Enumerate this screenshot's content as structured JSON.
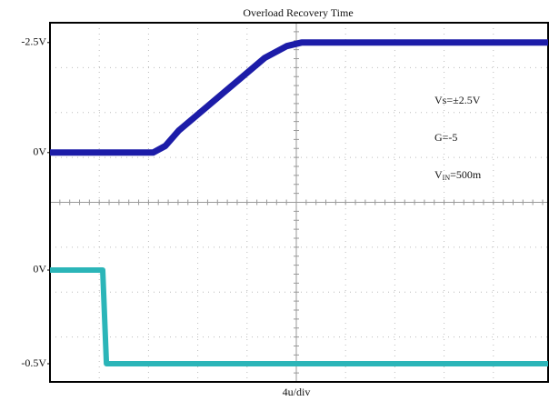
{
  "chart_data": {
    "type": "line",
    "title": "Overload Recovery Time",
    "xlabel": "4u/div",
    "xlim": [
      0,
      40.6
    ],
    "ylim": [
      5.21,
      -2.95
    ],
    "yticks": [
      {
        "value": -2.5,
        "label": "-2.5V"
      },
      {
        "value": 0,
        "label": "0V"
      }
    ],
    "y2lim": [
      -0.597,
      1.32
    ],
    "y2ticks": [
      {
        "value": 0,
        "label": "0V"
      },
      {
        "value": -0.5,
        "label": "-0.5V"
      }
    ],
    "annotations": [
      "Vs=±2.5V",
      "G=-5"
    ],
    "vin_annotation": {
      "base": "V",
      "sub": "IN",
      "tail": "=500m"
    },
    "grid": true,
    "series": [
      {
        "color": "#1c1ca8",
        "x": [
          0,
          8.4,
          9.4,
          10.5,
          17.5,
          19.3,
          20.5,
          40.6
        ],
        "values": [
          0,
          0,
          -0.15,
          -0.5,
          -2.15,
          -2.42,
          -2.5,
          -2.5
        ]
      },
      {
        "color": "#2bb5b8",
        "axis": "y2",
        "x": [
          0,
          4.3,
          4.6,
          40.6
        ],
        "values": [
          0,
          0,
          -0.5,
          -0.5
        ]
      }
    ]
  }
}
